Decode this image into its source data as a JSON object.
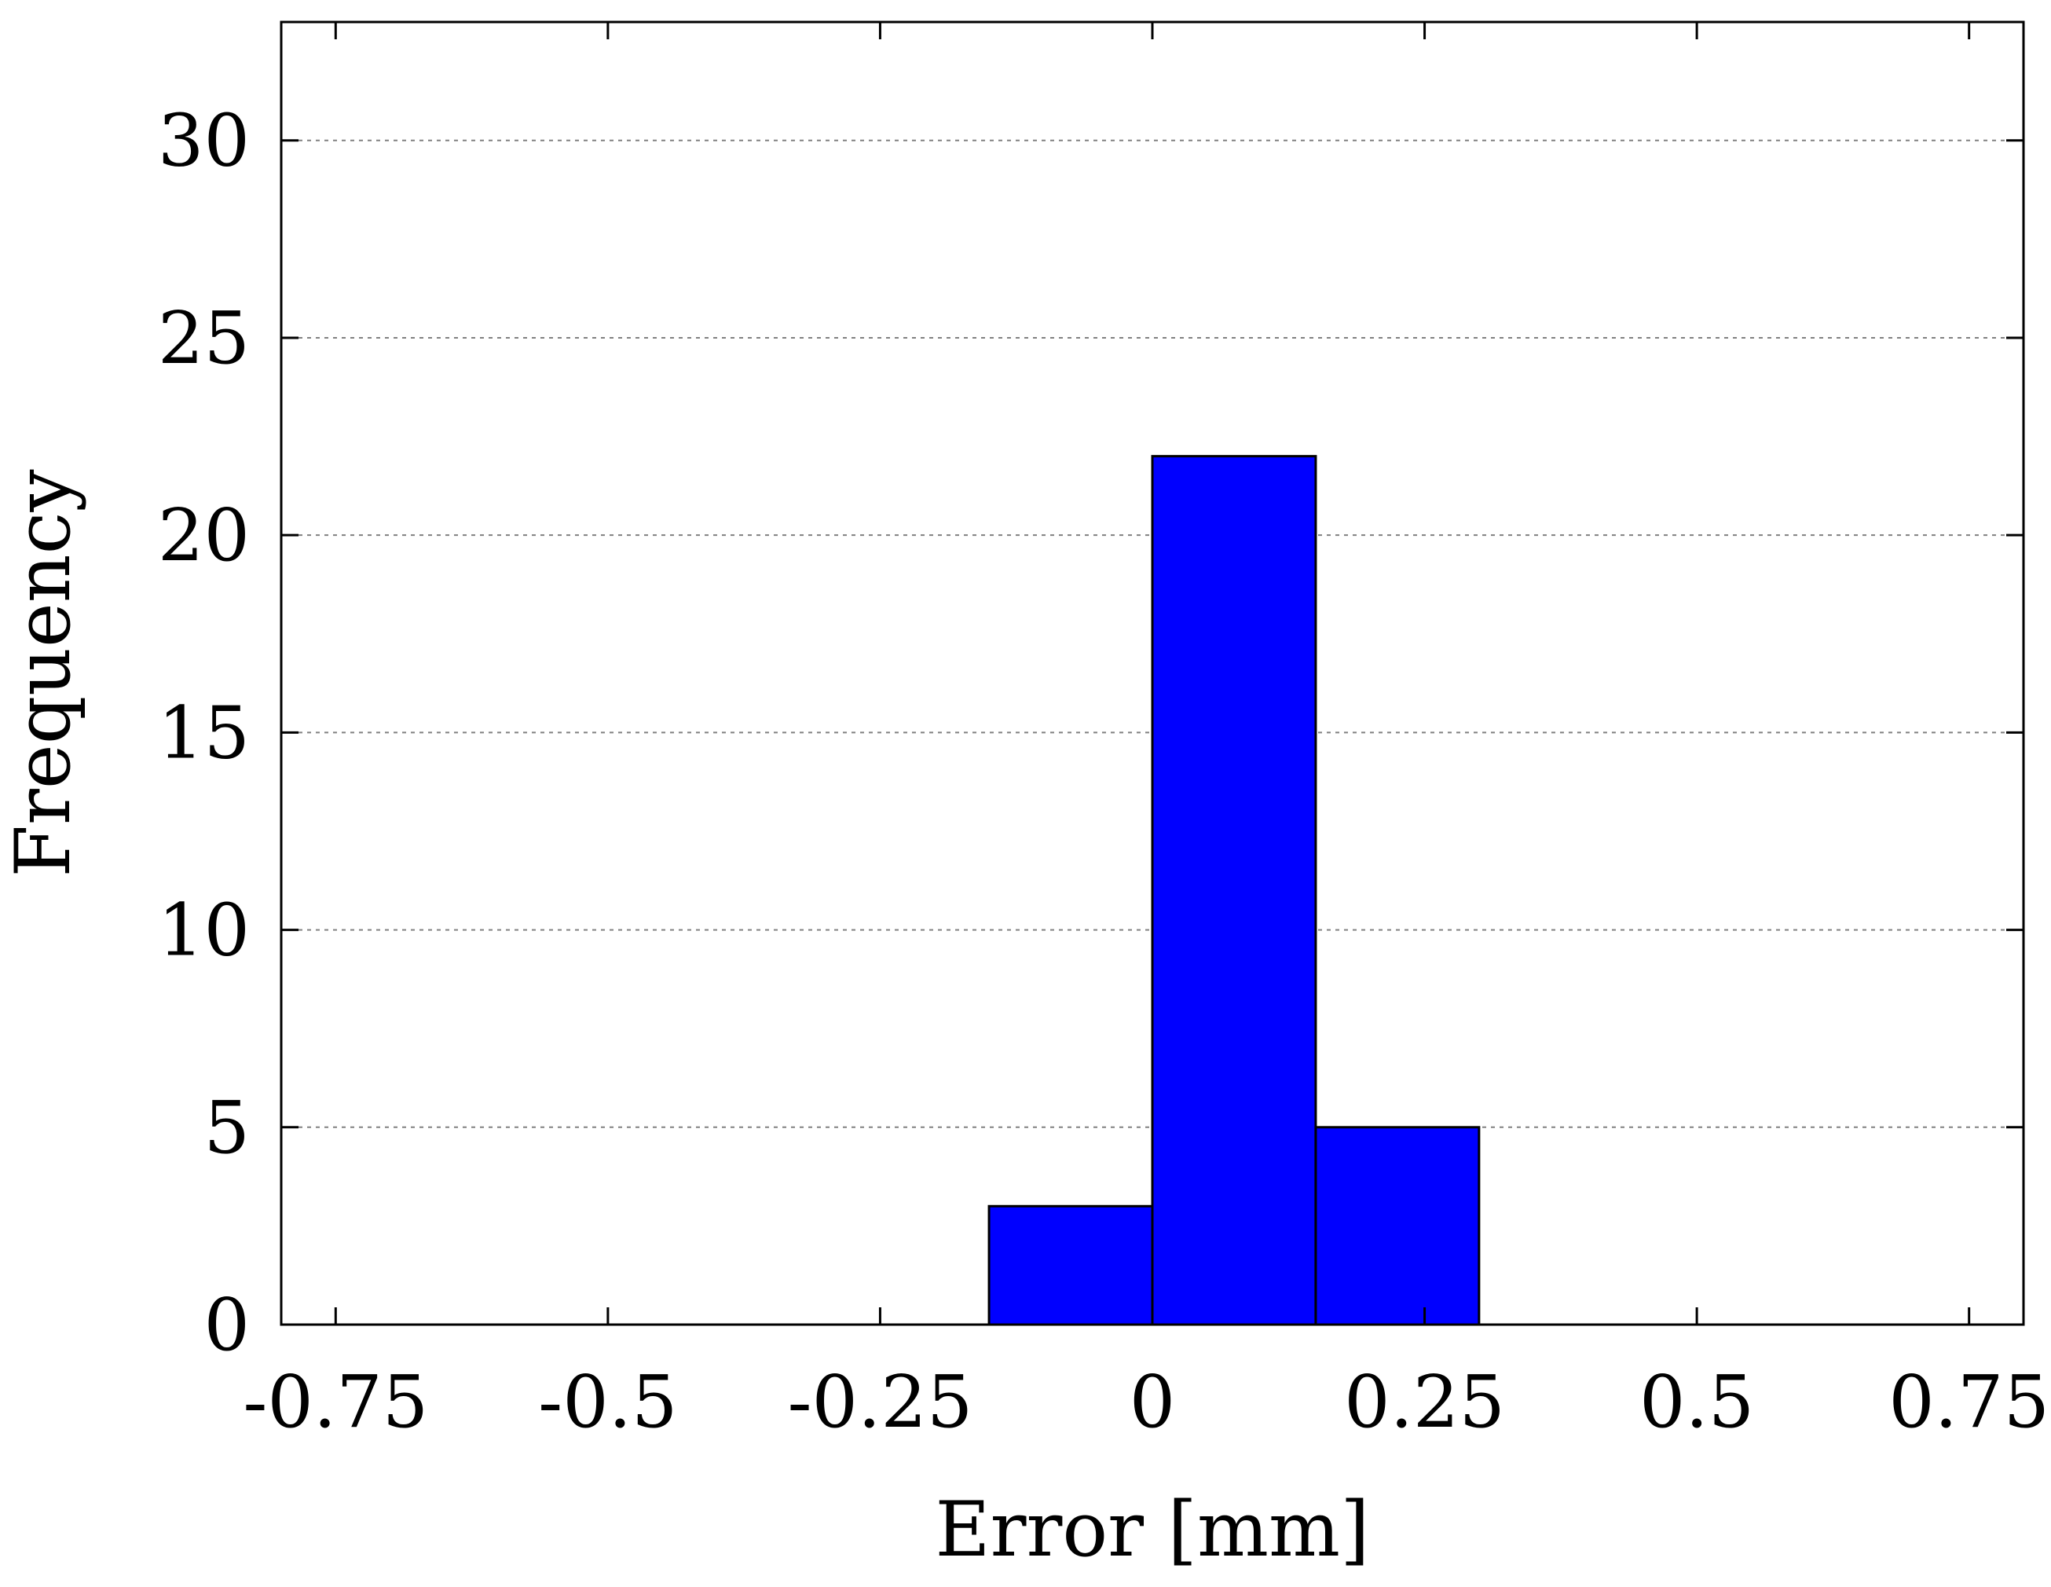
{
  "chart_data": {
    "type": "bar",
    "histogram": true,
    "xlabel": "Error [mm]",
    "ylabel": "Frequency",
    "xlim": [
      -0.8,
      0.8
    ],
    "ylim": [
      0,
      33
    ],
    "xticks": [
      -0.75,
      -0.5,
      -0.25,
      0,
      0.25,
      0.5,
      0.75
    ],
    "xtick_labels": [
      "-0.75",
      "-0.5",
      "-0.25",
      "0",
      "0.25",
      "0.5",
      "0.75"
    ],
    "yticks": [
      0,
      5,
      10,
      15,
      20,
      25,
      30
    ],
    "ytick_labels": [
      "0",
      "5",
      "10",
      "15",
      "20",
      "25",
      "30"
    ],
    "grid": "horizontal dashed",
    "bin_edges": [
      -0.15,
      0.0,
      0.15,
      0.3
    ],
    "values": [
      3,
      22,
      5
    ],
    "bar_color": "#0000ff",
    "edge_color": "#000000",
    "grid_color": "#808080"
  }
}
